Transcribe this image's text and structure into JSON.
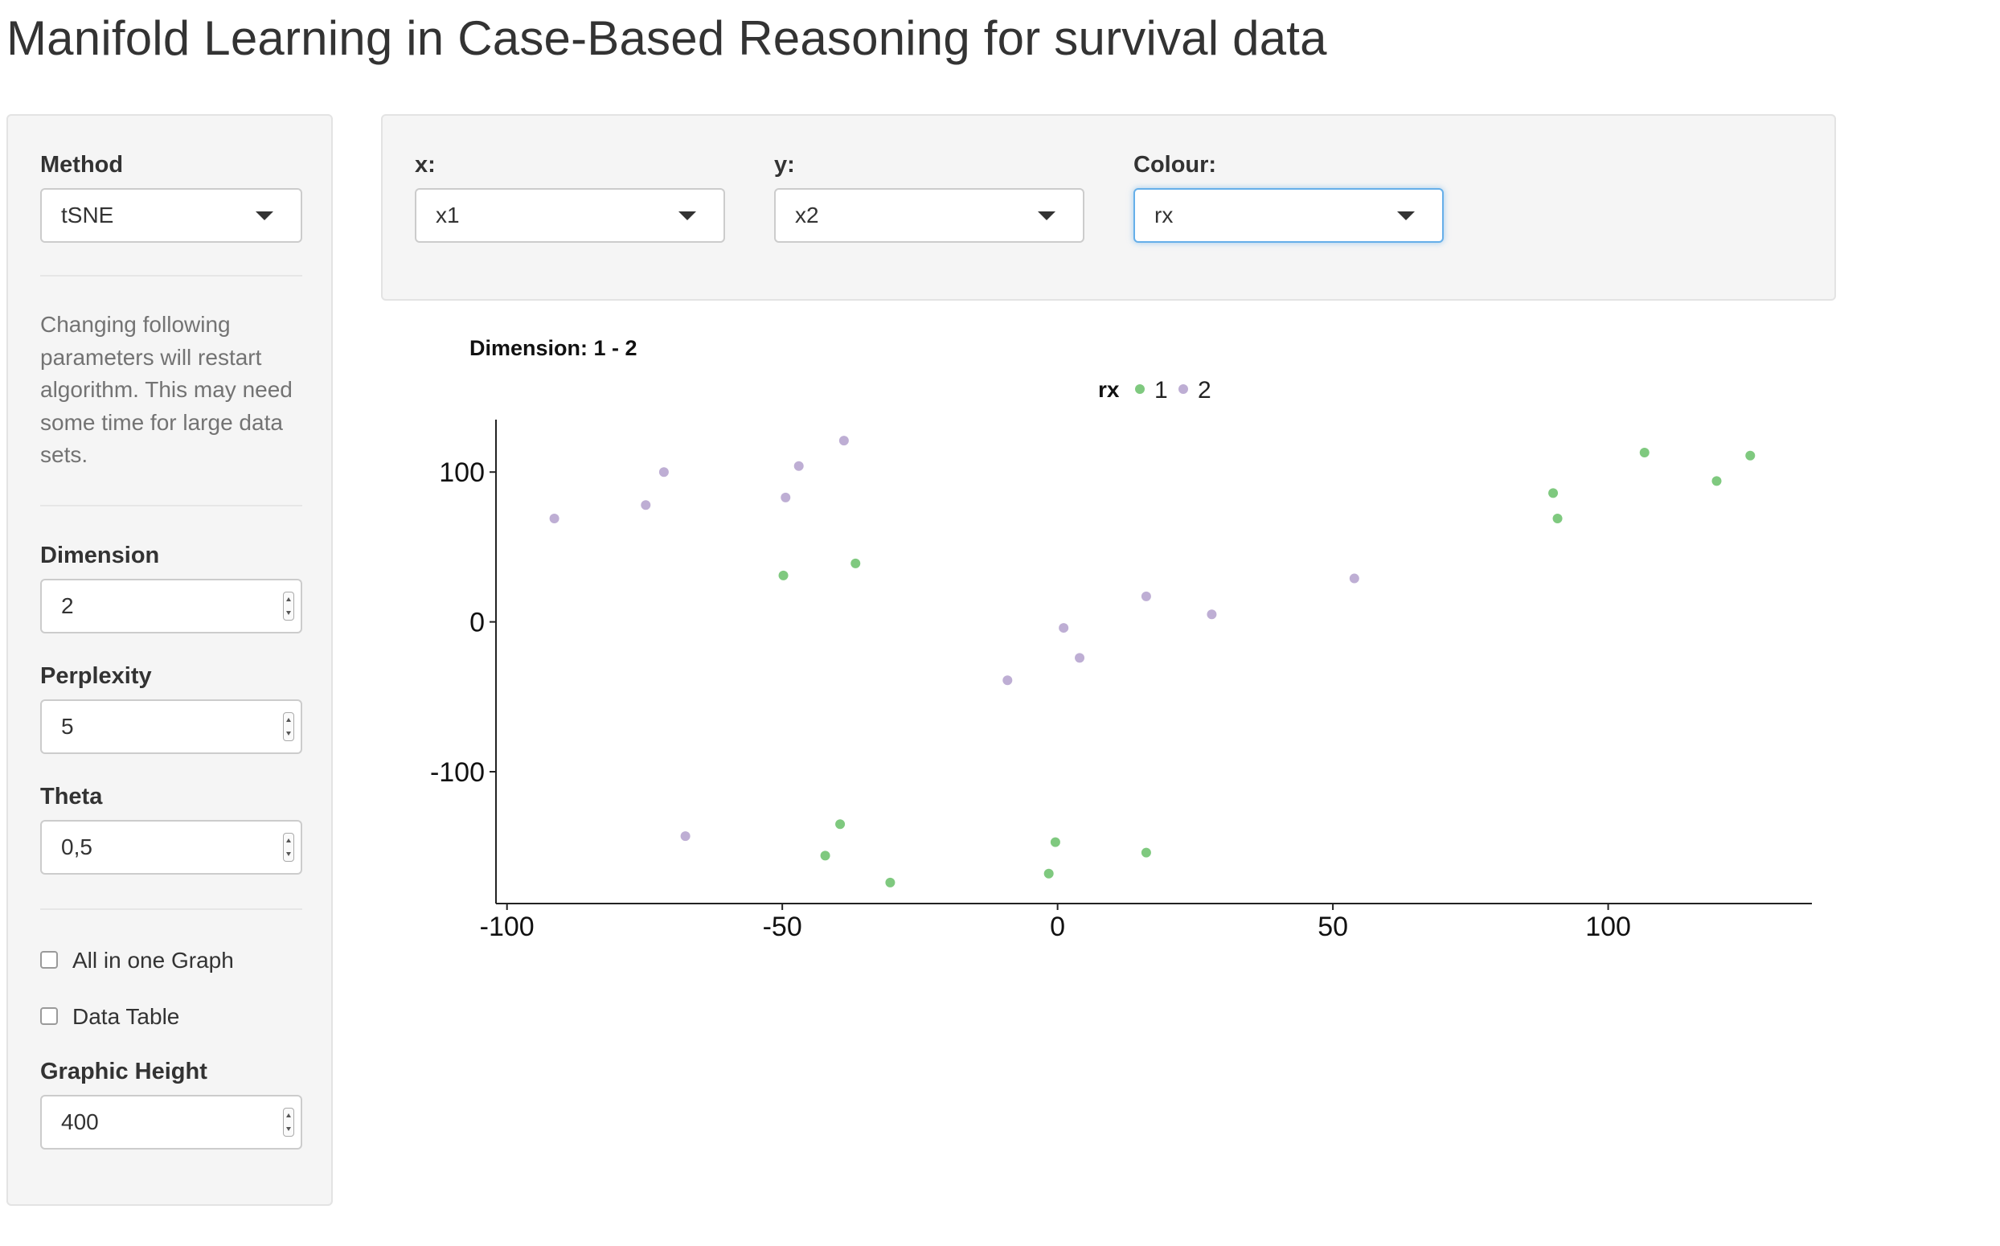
{
  "app": {
    "title": "Manifold Learning in Case-Based Reasoning for survival data"
  },
  "sidebar": {
    "method": {
      "label": "Method",
      "value": "tSNE"
    },
    "help_text": "Changing following parameters will restart algorithm. This may need some time for large data sets.",
    "dimension": {
      "label": "Dimension",
      "value": "2"
    },
    "perplexity": {
      "label": "Perplexity",
      "value": "5"
    },
    "theta": {
      "label": "Theta",
      "value": "0,5"
    },
    "all_in_one_graph": {
      "label": "All in one Graph",
      "checked": false
    },
    "data_table": {
      "label": "Data Table",
      "checked": false
    },
    "graphic_height": {
      "label": "Graphic Height",
      "value": "400"
    }
  },
  "controls": {
    "x": {
      "label": "x:",
      "value": "x1"
    },
    "y": {
      "label": "y:",
      "value": "x2"
    },
    "colour": {
      "label": "Colour:",
      "value": "rx"
    }
  },
  "chart_data": {
    "type": "scatter",
    "title": "Dimension: 1 - 2",
    "xlabel": "",
    "ylabel": "",
    "xlim": [
      -102,
      137
    ],
    "ylim": [
      -188,
      135
    ],
    "xticks": [
      -100,
      -50,
      0,
      50,
      100
    ],
    "yticks": [
      100,
      0,
      -100
    ],
    "legend": {
      "title": "rx",
      "placement": "top-center",
      "entries": [
        {
          "name": "1",
          "color": "#7fc97f"
        },
        {
          "name": "2",
          "color": "#beaed4"
        }
      ]
    },
    "grid": false,
    "series": [
      {
        "name": "1",
        "color": "#7fc97f",
        "points": [
          [
            -49.8,
            31
          ],
          [
            -36.7,
            39
          ],
          [
            90,
            86
          ],
          [
            90.8,
            69
          ],
          [
            106.6,
            113
          ],
          [
            119.7,
            94
          ],
          [
            125.8,
            111
          ],
          [
            -39.5,
            -135
          ],
          [
            -42.2,
            -156
          ],
          [
            -30.4,
            -174
          ],
          [
            -0.4,
            -147
          ],
          [
            -1.6,
            -168
          ],
          [
            16.1,
            -154
          ]
        ]
      },
      {
        "name": "2",
        "color": "#beaed4",
        "points": [
          [
            -91.4,
            69
          ],
          [
            -74.8,
            78
          ],
          [
            -71.5,
            100
          ],
          [
            -47,
            104
          ],
          [
            -49.4,
            83
          ],
          [
            -38.8,
            121
          ],
          [
            53.9,
            29
          ],
          [
            16.1,
            17
          ],
          [
            28,
            5
          ],
          [
            1.1,
            -4
          ],
          [
            4,
            -24
          ],
          [
            -9.1,
            -39
          ],
          [
            -67.6,
            -143
          ]
        ]
      }
    ]
  }
}
